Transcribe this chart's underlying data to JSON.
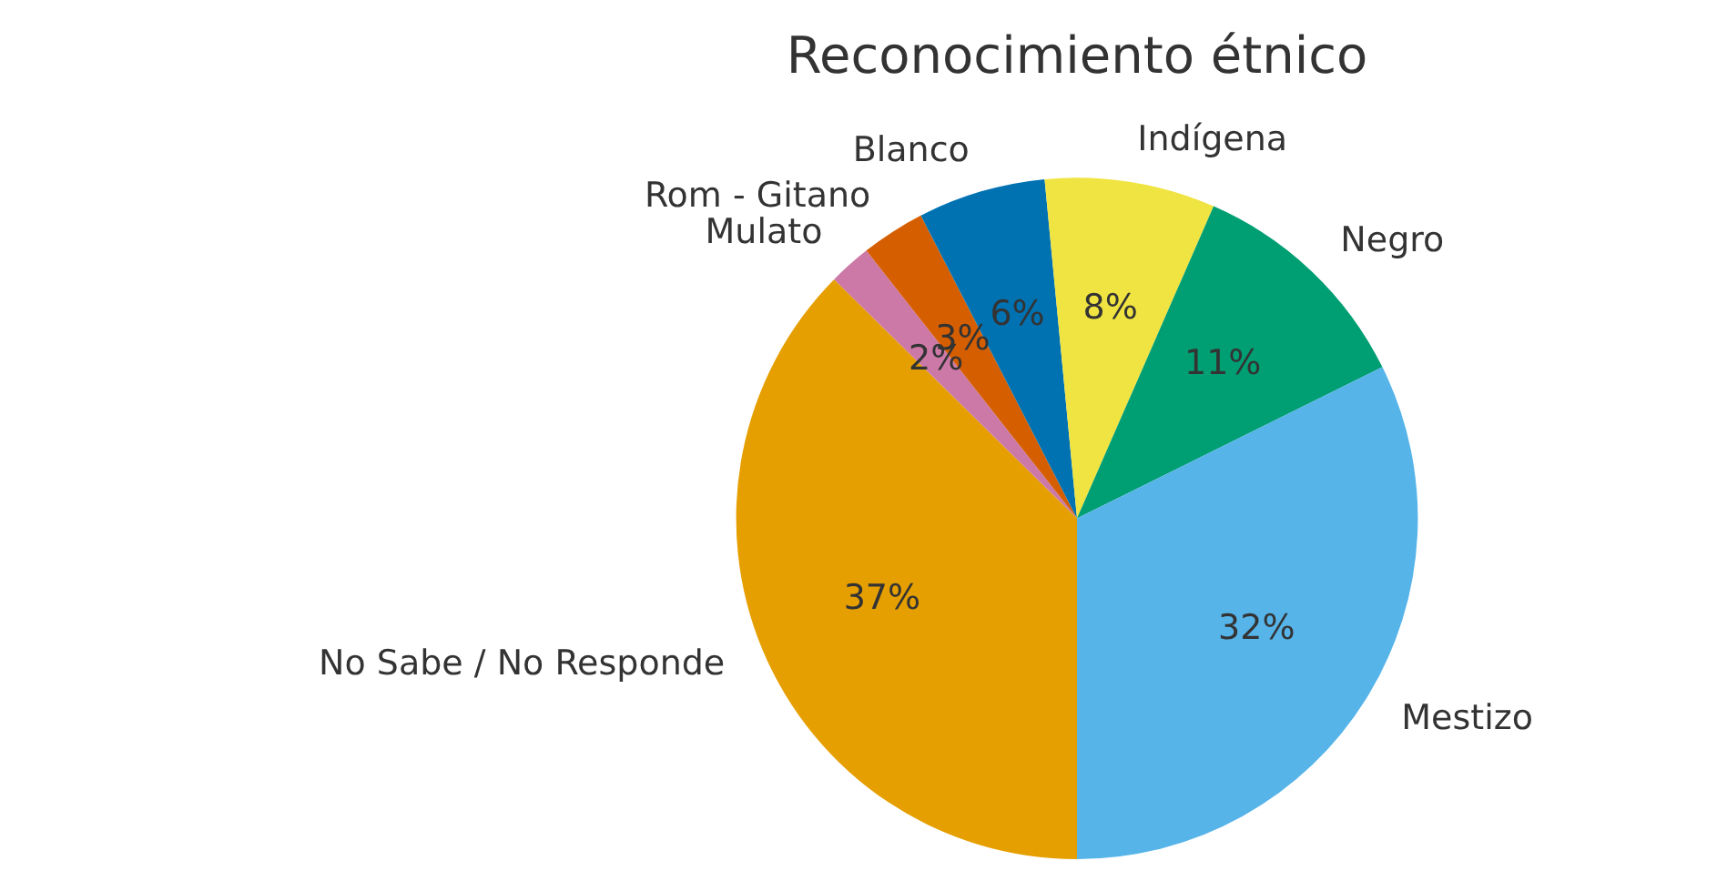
{
  "chart_data": {
    "type": "pie",
    "title": "Reconocimiento étnico",
    "categories": [
      "No Sabe / No Responde",
      "Mulato",
      "Rom - Gitano",
      "Blanco",
      "Indígena",
      "Negro",
      "Mestizo"
    ],
    "values": [
      37,
      2,
      3,
      6,
      8,
      11,
      32
    ],
    "colors": [
      "#e69f00",
      "#cc79a7",
      "#d55e00",
      "#0072b2",
      "#f0e442",
      "#009e73",
      "#56b4e9"
    ],
    "value_labels": [
      "37%",
      "2%",
      "3%",
      "6%",
      "8%",
      "11%",
      "32%"
    ],
    "legend": false
  }
}
